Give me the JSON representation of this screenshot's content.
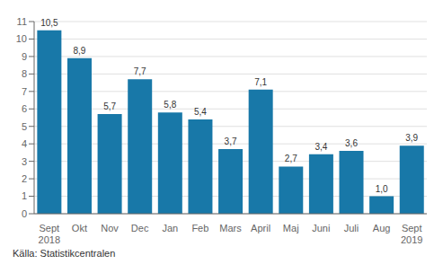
{
  "chart_data": {
    "type": "bar",
    "categories": [
      "Sept\n2018",
      "Okt",
      "Nov",
      "Dec",
      "Jan",
      "Feb",
      "Mars",
      "April",
      "Maj",
      "Juni",
      "Juli",
      "Aug",
      "Sept\n2019"
    ],
    "values": [
      10.5,
      8.9,
      5.7,
      7.7,
      5.8,
      5.4,
      3.7,
      7.1,
      2.7,
      3.4,
      3.6,
      1.0,
      3.9
    ],
    "value_labels": [
      "10,5",
      "8,9",
      "5,7",
      "7,7",
      "5,8",
      "5,4",
      "3,7",
      "7,1",
      "2,7",
      "3,4",
      "3,6",
      "1,0",
      "3,9"
    ],
    "data_labels": true,
    "color": "#1878a8",
    "ylim": [
      0,
      11
    ],
    "yticks": [
      0,
      1,
      2,
      3,
      4,
      5,
      6,
      7,
      8,
      9,
      10,
      11
    ],
    "grid": true,
    "annotations": [
      "Källa: Statistikcentralen"
    ]
  }
}
